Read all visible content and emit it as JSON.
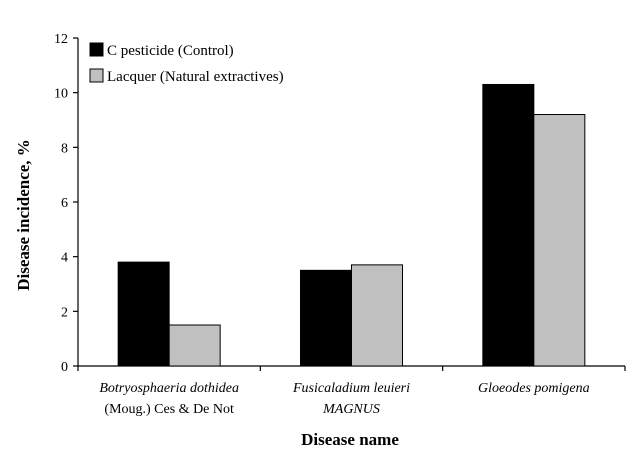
{
  "chart_data": {
    "type": "bar",
    "title": "",
    "xlabel": "Disease name",
    "ylabel": "Disease incidence,  %",
    "ylim": [
      0,
      12
    ],
    "yticks": [
      0,
      2,
      4,
      6,
      8,
      10,
      12
    ],
    "grid": false,
    "legend_position": "top-left",
    "categories": [
      {
        "lines": [
          "Botryosphaeria dothidea",
          "(Moug.)  Ces & De Not"
        ],
        "italic": [
          true,
          false
        ]
      },
      {
        "lines": [
          "Fusicaladium leuieri",
          "MAGNUS"
        ],
        "italic": [
          true,
          true
        ]
      },
      {
        "lines": [
          "Gloeodes pomigena"
        ],
        "italic": [
          true
        ]
      }
    ],
    "series": [
      {
        "name": "C pesticide (Control)",
        "color": "#000000",
        "values": [
          3.8,
          3.5,
          10.3
        ]
      },
      {
        "name": "Lacquer (Natural extractives)",
        "color": "#c0c0c0",
        "values": [
          1.5,
          3.7,
          9.2
        ]
      }
    ]
  }
}
